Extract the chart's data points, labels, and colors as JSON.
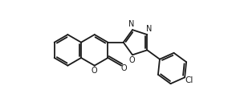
{
  "background_color": "#ffffff",
  "line_color": "#1a1a1a",
  "line_width": 1.3,
  "font_size": 7.0,
  "figsize": [
    2.94,
    1.17
  ],
  "dpi": 100,
  "xlim": [
    -0.3,
    9.8
  ],
  "ylim": [
    -1.5,
    4.5
  ]
}
